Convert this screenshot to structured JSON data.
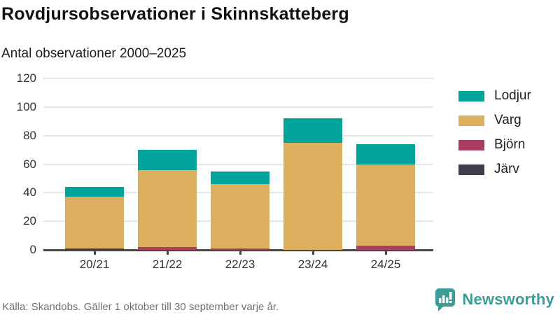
{
  "header": {
    "title": "Rovdjursobservationer i Skinnskatteberg",
    "subtitle": "Antal observationer 2000–2025"
  },
  "chart_data": {
    "type": "bar",
    "stacked": true,
    "title": "Rovdjursobservationer i Skinnskatteberg",
    "subtitle": "Antal observationer 2000–2025",
    "categories": [
      "20/21",
      "21/22",
      "22/23",
      "23/24",
      "24/25"
    ],
    "series": [
      {
        "name": "Järv",
        "color": "#3f3c4b",
        "values": [
          1,
          0,
          0,
          0,
          0
        ]
      },
      {
        "name": "Björn",
        "color": "#a93e5e",
        "values": [
          0,
          2,
          1,
          0,
          3
        ]
      },
      {
        "name": "Varg",
        "color": "#dbaf5d",
        "values": [
          36,
          54,
          45,
          75,
          57
        ]
      },
      {
        "name": "Lodjur",
        "color": "#00a49a",
        "values": [
          7,
          14,
          9,
          17,
          14
        ]
      }
    ],
    "totals": [
      44,
      70,
      55,
      92,
      74
    ],
    "xlabel": "",
    "ylabel": "",
    "ylim": [
      0,
      120
    ],
    "yticks": [
      0,
      20,
      40,
      60,
      80,
      100,
      120
    ],
    "grid": true,
    "legend_position": "right",
    "legend_order": [
      "Lodjur",
      "Varg",
      "Björn",
      "Järv"
    ]
  },
  "footer": {
    "source": "Källa: Skandobs. Gäller 1 oktober till 30 september varje år.",
    "brand": "Newsworthy"
  },
  "colors": {
    "brand_teal": "#3b9e96",
    "gridline": "#e6e6e6",
    "axis": "#474747"
  }
}
